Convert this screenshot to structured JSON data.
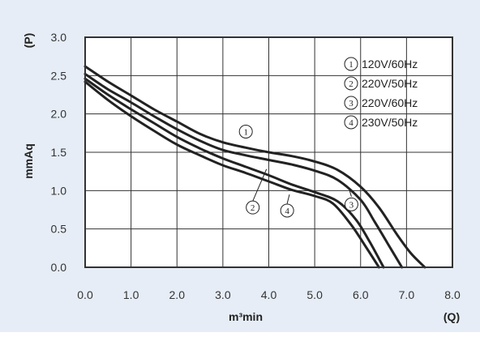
{
  "chart_data": {
    "type": "line",
    "xlabel": "m³min",
    "x_unit": "(Q)",
    "ylabel": "mmAq",
    "y_unit": "(P)",
    "xlim": [
      0,
      8
    ],
    "ylim": [
      0,
      3
    ],
    "x_ticks": [
      "0.0",
      "1.0",
      "2.0",
      "3.0",
      "4.0",
      "5.0",
      "6.0",
      "7.0",
      "8.0"
    ],
    "y_ticks": [
      "0.0",
      "0.5",
      "1.0",
      "1.5",
      "2.0",
      "2.5",
      "3.0"
    ],
    "grid": true,
    "legend_position": "top-right",
    "colors": {
      "line": "#222222",
      "grid": "#333333",
      "background": "#ffffff",
      "panel": "#e6edf6"
    },
    "series": [
      {
        "name": "120V/60Hz",
        "marker": "1",
        "x": [
          0,
          0.5,
          1,
          1.5,
          2,
          2.5,
          3,
          3.5,
          4,
          4.5,
          5,
          5.5,
          6,
          6.4,
          6.8,
          7.1,
          7.4
        ],
        "y": [
          2.62,
          2.42,
          2.24,
          2.06,
          1.9,
          1.74,
          1.63,
          1.56,
          1.5,
          1.45,
          1.38,
          1.27,
          1.05,
          0.78,
          0.42,
          0.18,
          0.0
        ]
      },
      {
        "name": "220V/50Hz",
        "marker": "2",
        "x": [
          0,
          0.5,
          1,
          1.5,
          2,
          2.5,
          3,
          3.5,
          4,
          4.5,
          5,
          5.4,
          5.8,
          6.1,
          6.4
        ],
        "y": [
          2.42,
          2.18,
          1.97,
          1.78,
          1.6,
          1.46,
          1.33,
          1.23,
          1.12,
          1.01,
          0.93,
          0.83,
          0.55,
          0.28,
          0.0
        ]
      },
      {
        "name": "220V/60Hz",
        "marker": "3",
        "x": [
          0,
          0.5,
          1,
          1.5,
          2,
          2.5,
          3,
          3.5,
          4,
          4.5,
          5,
          5.5,
          6,
          6.3,
          6.6,
          6.9
        ],
        "y": [
          2.52,
          2.32,
          2.15,
          1.97,
          1.8,
          1.65,
          1.53,
          1.46,
          1.4,
          1.34,
          1.26,
          1.14,
          0.88,
          0.6,
          0.3,
          0.0
        ]
      },
      {
        "name": "230V/50Hz",
        "marker": "4",
        "x": [
          0,
          0.5,
          1,
          1.5,
          2,
          2.5,
          3,
          3.5,
          4,
          4.5,
          5,
          5.5,
          5.9,
          6.2,
          6.5
        ],
        "y": [
          2.46,
          2.25,
          2.06,
          1.88,
          1.7,
          1.55,
          1.42,
          1.31,
          1.2,
          1.08,
          0.98,
          0.86,
          0.62,
          0.33,
          0.0
        ]
      }
    ],
    "curve_labels": [
      {
        "text": "1",
        "x": 3.5,
        "y": 1.77
      },
      {
        "text": "2",
        "x": 3.65,
        "y": 0.78
      },
      {
        "text": "3",
        "x": 5.8,
        "y": 0.82
      },
      {
        "text": "4",
        "x": 4.4,
        "y": 0.74
      }
    ]
  }
}
